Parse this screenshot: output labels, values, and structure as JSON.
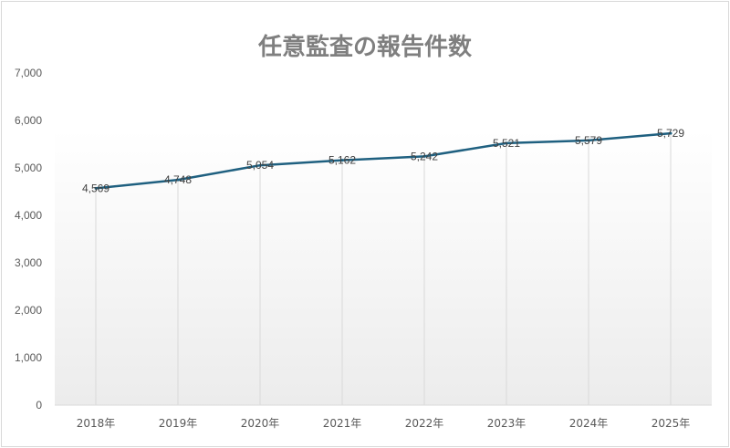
{
  "chart_data": {
    "type": "line",
    "title": "任意監査の報告件数",
    "categories": [
      "2018年",
      "2019年",
      "2020年",
      "2021年",
      "2022年",
      "2023年",
      "2024年",
      "2025年"
    ],
    "series": [
      {
        "values": [
          4569,
          4748,
          5054,
          5162,
          5242,
          5521,
          5579,
          5729
        ],
        "color": "#1f6080"
      }
    ],
    "data_labels": [
      "4,569",
      "4,748",
      "5,054",
      "5,162",
      "5,242",
      "5,521",
      "5,579",
      "5,729"
    ],
    "yticks": [
      "0",
      "1,000",
      "2,000",
      "3,000",
      "4,000",
      "5,000",
      "6,000",
      "7,000"
    ],
    "ylim": [
      0,
      7000
    ],
    "grid": "vertical drop lines",
    "legend": "none"
  }
}
